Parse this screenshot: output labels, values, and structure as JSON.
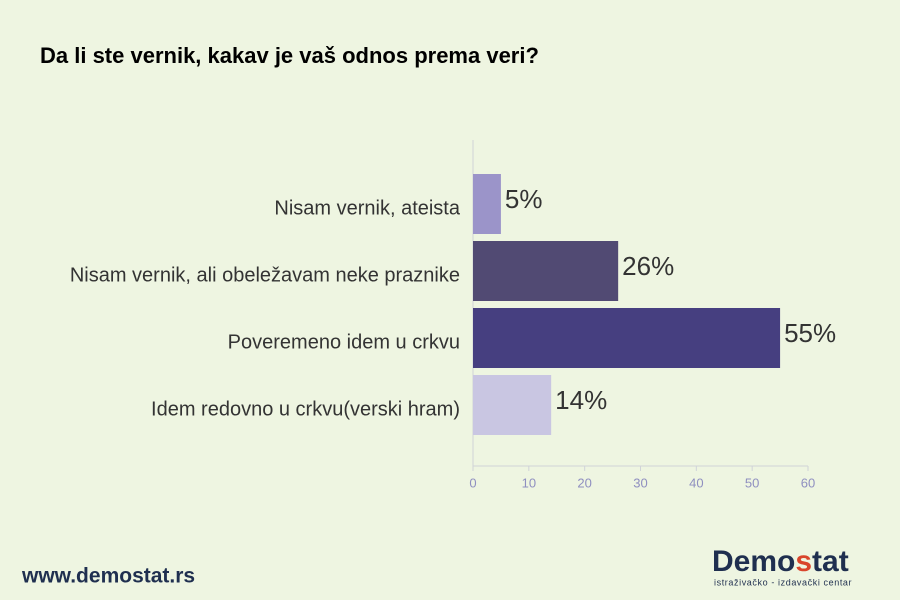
{
  "chart_data": {
    "type": "barh",
    "title": "Da li ste vernik, kakav je vaš odnos prema veri?",
    "categories": [
      "Nisam vernik, ateista",
      "Nisam vernik, ali obeležavam neke praznike",
      "Poveremeno idem u crkvu",
      "Idem redovno u crkvu(verski hram)"
    ],
    "values": [
      5,
      26,
      55,
      14
    ],
    "value_labels": [
      "5%",
      "26%",
      "55%",
      "14%"
    ],
    "colors": [
      "#9b94c9",
      "#514a73",
      "#463f80",
      "#c9c6e2"
    ],
    "xlim": [
      0,
      60
    ],
    "xticks": [
      0,
      10,
      20,
      30,
      40,
      50,
      60
    ]
  },
  "footer": {
    "website": "www.demostat.rs",
    "logo_parts": [
      "Demo",
      "s",
      "tat"
    ],
    "logo_tagline": "istraživačko - izdavački centar"
  }
}
